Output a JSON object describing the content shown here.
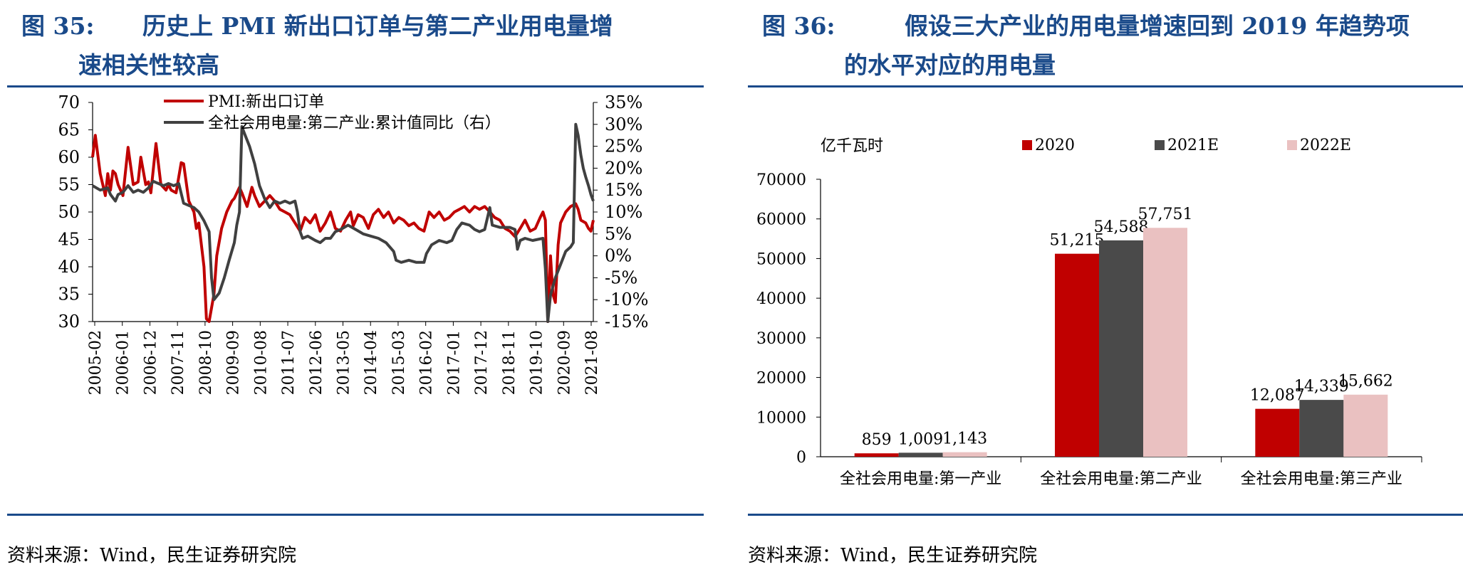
{
  "left": {
    "fig_num": "图 35:",
    "title_line1": "历史上 PMI 新出口订单与第二产业用电量增",
    "title_line2": "速相关性较高",
    "source": "资料来源：Wind，民生证券研究院"
  },
  "right": {
    "fig_num": "图 36:",
    "title_line1": "假设三大产业的用电量增速回到 2019 年趋势项",
    "title_line2": "的水平对应的用电量",
    "source": "资料来源：Wind，民生证券研究院"
  },
  "chart_data": [
    {
      "type": "line",
      "title": "",
      "left_axis": {
        "ylim": [
          30,
          70
        ],
        "ticks": [
          "70",
          "65",
          "60",
          "55",
          "50",
          "45",
          "40",
          "35",
          "30"
        ]
      },
      "right_axis": {
        "ylim": [
          -15,
          35
        ],
        "ticks": [
          "35%",
          "30%",
          "25%",
          "20%",
          "15%",
          "10%",
          "5%",
          "0%",
          "-5%",
          "-10%",
          "-15%"
        ]
      },
      "x_ticks": [
        "2005-02",
        "2006-01",
        "2006-12",
        "2007-11",
        "2008-10",
        "2009-09",
        "2010-08",
        "2011-07",
        "2012-06",
        "2013-05",
        "2014-04",
        "2015-03",
        "2016-02",
        "2017-01",
        "2017-12",
        "2018-11",
        "2019-10",
        "2020-09",
        "2021-08"
      ],
      "x_range": [
        2005.08,
        2021.58
      ],
      "legend_position": "top-left",
      "series": [
        {
          "name": "PMI:新出口订单",
          "axis": "left",
          "color": "#c00000",
          "points": [
            [
              2005.08,
              60.0
            ],
            [
              2005.17,
              64.0
            ],
            [
              2005.33,
              57.0
            ],
            [
              2005.5,
              53.0
            ],
            [
              2005.58,
              57.0
            ],
            [
              2005.67,
              54.0
            ],
            [
              2005.75,
              57.5
            ],
            [
              2005.83,
              57.0
            ],
            [
              2005.92,
              55.0
            ],
            [
              2006.0,
              54.0
            ],
            [
              2006.08,
              53.0
            ],
            [
              2006.25,
              61.8
            ],
            [
              2006.42,
              55.0
            ],
            [
              2006.58,
              55.5
            ],
            [
              2006.67,
              60.0
            ],
            [
              2006.83,
              55.0
            ],
            [
              2006.92,
              55.5
            ],
            [
              2007.0,
              53.5
            ],
            [
              2007.17,
              62.5
            ],
            [
              2007.33,
              55.0
            ],
            [
              2007.5,
              54.0
            ],
            [
              2007.58,
              55.0
            ],
            [
              2007.67,
              54.0
            ],
            [
              2007.83,
              53.5
            ],
            [
              2008.0,
              59.0
            ],
            [
              2008.08,
              58.8
            ],
            [
              2008.25,
              52.0
            ],
            [
              2008.42,
              50.0
            ],
            [
              2008.5,
              47.0
            ],
            [
              2008.58,
              48.0
            ],
            [
              2008.75,
              40.0
            ],
            [
              2008.83,
              30.5
            ],
            [
              2008.92,
              30.0
            ],
            [
              2009.08,
              35.0
            ],
            [
              2009.17,
              42.0
            ],
            [
              2009.33,
              47.0
            ],
            [
              2009.5,
              50.0
            ],
            [
              2009.67,
              52.0
            ],
            [
              2009.75,
              52.5
            ],
            [
              2009.92,
              54.5
            ],
            [
              2010.0,
              53.5
            ],
            [
              2010.17,
              51.0
            ],
            [
              2010.33,
              54.5
            ],
            [
              2010.42,
              53.0
            ],
            [
              2010.58,
              51.0
            ],
            [
              2010.75,
              52.0
            ],
            [
              2010.92,
              53.0
            ],
            [
              2011.08,
              52.0
            ],
            [
              2011.25,
              50.5
            ],
            [
              2011.42,
              50.0
            ],
            [
              2011.58,
              49.5
            ],
            [
              2011.75,
              48.0
            ],
            [
              2011.92,
              46.5
            ],
            [
              2012.08,
              49.0
            ],
            [
              2012.25,
              48.0
            ],
            [
              2012.42,
              49.5
            ],
            [
              2012.58,
              46.5
            ],
            [
              2012.75,
              48.0
            ],
            [
              2012.92,
              50.0
            ],
            [
              2013.08,
              47.0
            ],
            [
              2013.25,
              46.5
            ],
            [
              2013.42,
              48.5
            ],
            [
              2013.58,
              50.0
            ],
            [
              2013.67,
              47.5
            ],
            [
              2013.83,
              49.5
            ],
            [
              2014.0,
              49.0
            ],
            [
              2014.17,
              47.0
            ],
            [
              2014.33,
              49.5
            ],
            [
              2014.5,
              50.5
            ],
            [
              2014.67,
              49.0
            ],
            [
              2014.83,
              50.0
            ],
            [
              2015.0,
              48.0
            ],
            [
              2015.17,
              49.0
            ],
            [
              2015.33,
              48.5
            ],
            [
              2015.5,
              47.5
            ],
            [
              2015.67,
              48.0
            ],
            [
              2015.83,
              47.0
            ],
            [
              2016.0,
              46.5
            ],
            [
              2016.17,
              50.0
            ],
            [
              2016.33,
              49.0
            ],
            [
              2016.5,
              50.0
            ],
            [
              2016.67,
              48.5
            ],
            [
              2016.83,
              49.0
            ],
            [
              2017.0,
              50.0
            ],
            [
              2017.17,
              50.5
            ],
            [
              2017.33,
              51.0
            ],
            [
              2017.5,
              50.0
            ],
            [
              2017.67,
              51.0
            ],
            [
              2017.83,
              50.5
            ],
            [
              2018.0,
              51.0
            ],
            [
              2018.17,
              50.0
            ],
            [
              2018.33,
              49.0
            ],
            [
              2018.5,
              48.5
            ],
            [
              2018.67,
              47.0
            ],
            [
              2018.83,
              46.5
            ],
            [
              2019.0,
              45.5
            ],
            [
              2019.17,
              47.0
            ],
            [
              2019.33,
              48.5
            ],
            [
              2019.5,
              46.5
            ],
            [
              2019.67,
              47.0
            ],
            [
              2019.83,
              49.0
            ],
            [
              2019.92,
              50.0
            ],
            [
              2020.0,
              48.5
            ],
            [
              2020.08,
              30.0
            ],
            [
              2020.17,
              42.0
            ],
            [
              2020.25,
              35.0
            ],
            [
              2020.33,
              33.5
            ],
            [
              2020.42,
              44.0
            ],
            [
              2020.5,
              48.0
            ],
            [
              2020.67,
              50.0
            ],
            [
              2020.83,
              51.0
            ],
            [
              2021.0,
              51.5
            ],
            [
              2021.08,
              50.5
            ],
            [
              2021.17,
              48.5
            ],
            [
              2021.33,
              48.0
            ],
            [
              2021.42,
              47.0
            ],
            [
              2021.5,
              46.5
            ],
            [
              2021.58,
              48.5
            ]
          ]
        },
        {
          "name": "全社会用电量:第二产业:累计值同比（右）",
          "axis": "right",
          "color": "#404040",
          "points": [
            [
              2005.08,
              16.0
            ],
            [
              2005.33,
              15.0
            ],
            [
              2005.58,
              15.5
            ],
            [
              2005.67,
              14.0
            ],
            [
              2005.83,
              12.5
            ],
            [
              2005.92,
              14.0
            ],
            [
              2006.08,
              14.5
            ],
            [
              2006.25,
              16.0
            ],
            [
              2006.42,
              14.5
            ],
            [
              2006.58,
              15.0
            ],
            [
              2006.75,
              14.5
            ],
            [
              2006.92,
              15.5
            ],
            [
              2007.08,
              17.0
            ],
            [
              2007.25,
              16.5
            ],
            [
              2007.42,
              16.0
            ],
            [
              2007.58,
              16.5
            ],
            [
              2007.75,
              16.0
            ],
            [
              2007.92,
              16.5
            ],
            [
              2008.08,
              12.0
            ],
            [
              2008.25,
              11.5
            ],
            [
              2008.42,
              11.0
            ],
            [
              2008.58,
              10.0
            ],
            [
              2008.75,
              8.0
            ],
            [
              2008.92,
              5.5
            ],
            [
              2009.0,
              -5.0
            ],
            [
              2009.08,
              -10.0
            ],
            [
              2009.25,
              -8.5
            ],
            [
              2009.42,
              -5.0
            ],
            [
              2009.58,
              -1.0
            ],
            [
              2009.75,
              3.0
            ],
            [
              2009.83,
              7.0
            ],
            [
              2009.92,
              10.0
            ],
            [
              2010.0,
              29.5
            ],
            [
              2010.08,
              28.0
            ],
            [
              2010.25,
              25.0
            ],
            [
              2010.42,
              21.0
            ],
            [
              2010.58,
              16.0
            ],
            [
              2010.75,
              13.0
            ],
            [
              2010.92,
              11.0
            ],
            [
              2011.08,
              12.5
            ],
            [
              2011.25,
              12.0
            ],
            [
              2011.42,
              12.5
            ],
            [
              2011.58,
              12.0
            ],
            [
              2011.75,
              12.5
            ],
            [
              2011.83,
              10.0
            ],
            [
              2011.92,
              5.5
            ],
            [
              2012.0,
              4.0
            ],
            [
              2012.17,
              4.5
            ],
            [
              2012.42,
              3.5
            ],
            [
              2012.58,
              3.0
            ],
            [
              2012.75,
              4.0
            ],
            [
              2012.92,
              4.0
            ],
            [
              2013.08,
              5.5
            ],
            [
              2013.25,
              6.0
            ],
            [
              2013.5,
              7.0
            ],
            [
              2013.75,
              6.0
            ],
            [
              2014.0,
              5.0
            ],
            [
              2014.25,
              4.5
            ],
            [
              2014.5,
              4.0
            ],
            [
              2014.75,
              3.0
            ],
            [
              2015.0,
              1.0
            ],
            [
              2015.08,
              -1.0
            ],
            [
              2015.25,
              -1.5
            ],
            [
              2015.5,
              -1.0
            ],
            [
              2015.75,
              -1.5
            ],
            [
              2016.0,
              -1.5
            ],
            [
              2016.08,
              0.5
            ],
            [
              2016.25,
              2.5
            ],
            [
              2016.5,
              3.5
            ],
            [
              2016.75,
              3.0
            ],
            [
              2016.92,
              3.5
            ],
            [
              2017.08,
              6.0
            ],
            [
              2017.25,
              7.5
            ],
            [
              2017.5,
              7.0
            ],
            [
              2017.67,
              6.0
            ],
            [
              2017.83,
              5.5
            ],
            [
              2018.0,
              6.0
            ],
            [
              2018.17,
              11.0
            ],
            [
              2018.25,
              7.0
            ],
            [
              2018.5,
              6.5
            ],
            [
              2018.67,
              6.5
            ],
            [
              2018.83,
              6.5
            ],
            [
              2019.0,
              6.0
            ],
            [
              2019.08,
              1.5
            ],
            [
              2019.17,
              3.5
            ],
            [
              2019.33,
              4.0
            ],
            [
              2019.58,
              3.5
            ],
            [
              2019.92,
              4.0
            ],
            [
              2020.0,
              -3.0
            ],
            [
              2020.08,
              -15.0
            ],
            [
              2020.17,
              -9.0
            ],
            [
              2020.33,
              -5.0
            ],
            [
              2020.5,
              -2.0
            ],
            [
              2020.67,
              1.0
            ],
            [
              2020.83,
              2.0
            ],
            [
              2020.92,
              3.0
            ],
            [
              2021.0,
              30.0
            ],
            [
              2021.08,
              27.5
            ],
            [
              2021.17,
              23.0
            ],
            [
              2021.25,
              20.0
            ],
            [
              2021.33,
              18.0
            ],
            [
              2021.42,
              16.0
            ],
            [
              2021.5,
              14.0
            ],
            [
              2021.58,
              12.5
            ]
          ]
        }
      ]
    },
    {
      "type": "bar",
      "title": "",
      "ylabel": "亿千瓦时",
      "ylim": [
        0,
        70000
      ],
      "y_ticks": [
        "70000",
        "60000",
        "50000",
        "40000",
        "30000",
        "20000",
        "10000",
        "0"
      ],
      "categories": [
        "全社会用电量:第一产业",
        "全社会用电量:第二产业",
        "全社会用电量:第三产业"
      ],
      "legend_position": "top",
      "series": [
        {
          "name": "2020",
          "color": "#c00000",
          "values": [
            859,
            51215,
            12087
          ],
          "labels": [
            "859",
            "51,215",
            "12,087"
          ]
        },
        {
          "name": "2021E",
          "color": "#4a4a4a",
          "values": [
            1009,
            54588,
            14339
          ],
          "labels": [
            "1,009",
            "54,588",
            "14,339"
          ]
        },
        {
          "name": "2022E",
          "color": "#eac1c1",
          "values": [
            1143,
            57751,
            15662
          ],
          "labels": [
            "1,143",
            "57,751",
            "15,662"
          ]
        }
      ]
    }
  ]
}
